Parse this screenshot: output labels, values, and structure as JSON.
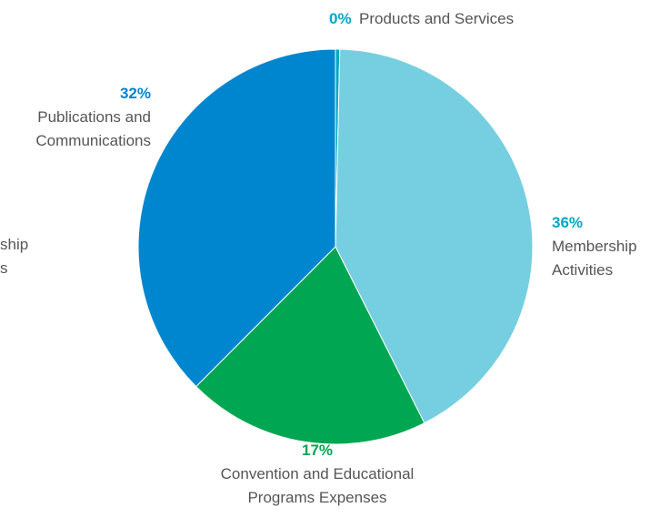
{
  "chart_data": {
    "type": "pie",
    "title": "",
    "slices": [
      {
        "name": "Products and Services",
        "label_lines": [
          "Products and Services"
        ],
        "percent_label": "0%",
        "value": 0.3,
        "color": "#00a7c6"
      },
      {
        "name": "Membership Activities",
        "label_lines": [
          "Membership",
          "Activities"
        ],
        "percent_label": "36%",
        "value": 36,
        "color": "#76cfe0",
        "label_color": "#00a7c6"
      },
      {
        "name": "Convention and Educational Programs Expenses",
        "label_lines": [
          "Convention and Educational",
          "Programs Expenses"
        ],
        "percent_label": "17%",
        "value": 17,
        "color": "#00a651"
      },
      {
        "name": "Publications and Communications",
        "label_lines": [
          "Publications and",
          "Communications"
        ],
        "percent_label": "32%",
        "value": 32,
        "color": "#0086cf"
      }
    ],
    "partial_label": {
      "name": "Membership Activities (cut off at left edge)",
      "label_lines": [
        "ship",
        "s"
      ]
    },
    "legend": "none (labels placed around pie)"
  }
}
